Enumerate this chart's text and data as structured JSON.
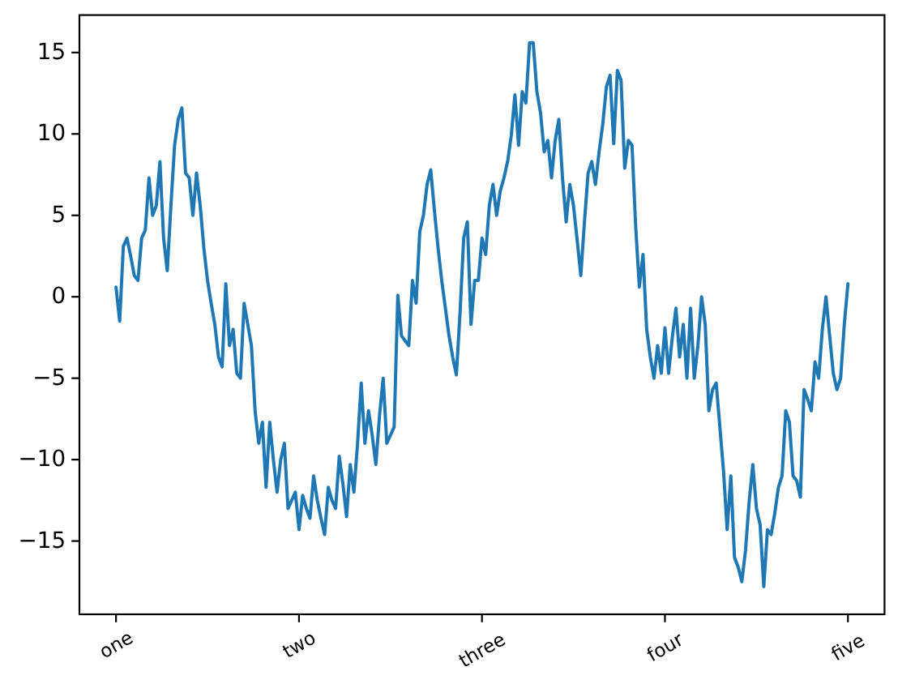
{
  "chart_data": {
    "type": "line",
    "categories": [
      "one",
      null,
      null,
      null,
      null,
      null,
      null,
      null,
      null,
      null,
      null,
      null,
      null,
      null,
      null,
      null,
      null,
      null,
      null,
      null,
      null,
      null,
      null,
      null,
      null,
      null,
      null,
      null,
      null,
      null,
      null,
      null,
      null,
      null,
      null,
      null,
      null,
      null,
      null,
      null,
      null,
      null,
      null,
      null,
      null,
      null,
      null,
      null,
      null,
      null,
      "two",
      null,
      null,
      null,
      null,
      null,
      null,
      null,
      null,
      null,
      null,
      null,
      null,
      null,
      null,
      null,
      null,
      null,
      null,
      null,
      null,
      null,
      null,
      null,
      null,
      null,
      null,
      null,
      null,
      null,
      null,
      null,
      null,
      null,
      null,
      null,
      null,
      null,
      null,
      null,
      null,
      null,
      null,
      null,
      null,
      null,
      null,
      null,
      null,
      null,
      "three",
      null,
      null,
      null,
      null,
      null,
      null,
      null,
      null,
      null,
      null,
      null,
      null,
      null,
      null,
      null,
      null,
      null,
      null,
      null,
      null,
      null,
      null,
      null,
      null,
      null,
      null,
      null,
      null,
      null,
      null,
      null,
      null,
      null,
      null,
      null,
      null,
      null,
      null,
      null,
      null,
      null,
      null,
      null,
      null,
      null,
      null,
      null,
      null,
      null,
      "four",
      null,
      null,
      null,
      null,
      null,
      null,
      null,
      null,
      null,
      null,
      null,
      null,
      null,
      null,
      null,
      null,
      null,
      null,
      null,
      null,
      null,
      null,
      null,
      null,
      null,
      null,
      null,
      null,
      null,
      null,
      null,
      null,
      null,
      null,
      null,
      null,
      null,
      null,
      null,
      null,
      null,
      null,
      null,
      null,
      null,
      null,
      null,
      null,
      null,
      "five"
    ],
    "series": [
      {
        "color": "#1f77b4",
        "values": [
          0.6,
          -1.5,
          3.1,
          3.6,
          2.5,
          1.3,
          1.0,
          3.6,
          4.1,
          7.3,
          5.0,
          5.6,
          8.3,
          3.6,
          1.6,
          5.6,
          9.3,
          10.9,
          11.6,
          7.6,
          7.3,
          5.0,
          7.6,
          5.6,
          3.0,
          1.0,
          -0.4,
          -1.7,
          -3.7,
          -4.3,
          0.8,
          -3.0,
          -2.0,
          -4.7,
          -5.0,
          -0.4,
          -1.7,
          -3.0,
          -7.0,
          -9.0,
          -7.7,
          -11.7,
          -7.7,
          -10.0,
          -12.0,
          -10.0,
          -9.0,
          -13.0,
          -12.5,
          -12.0,
          -14.3,
          -12.2,
          -13.0,
          -13.6,
          -11.0,
          -12.5,
          -13.6,
          -14.6,
          -11.7,
          -12.5,
          -13.0,
          -9.8,
          -11.5,
          -13.5,
          -10.3,
          -12.0,
          -9.0,
          -5.3,
          -9.0,
          -7.0,
          -8.5,
          -10.3,
          -7.3,
          -5.0,
          -9.0,
          -8.5,
          -8.0,
          0.1,
          -2.4,
          -2.7,
          -3.0,
          1.0,
          -0.4,
          4.0,
          5.0,
          6.9,
          7.8,
          5.3,
          3.0,
          1.0,
          -0.7,
          -2.4,
          -3.7,
          -4.8,
          -1.0,
          3.6,
          4.6,
          -1.7,
          1.0,
          1.0,
          3.6,
          2.6,
          5.6,
          6.9,
          5.0,
          6.5,
          7.3,
          8.3,
          9.9,
          12.4,
          9.3,
          12.6,
          11.9,
          15.6,
          15.6,
          12.6,
          11.3,
          8.9,
          9.6,
          7.3,
          9.6,
          10.9,
          7.3,
          4.6,
          6.9,
          5.6,
          3.5,
          1.3,
          4.6,
          7.6,
          8.3,
          6.9,
          8.9,
          10.6,
          12.9,
          13.6,
          9.4,
          13.9,
          13.3,
          7.9,
          9.6,
          9.3,
          4.3,
          0.6,
          2.6,
          -2.0,
          -3.7,
          -5.0,
          -3.0,
          -4.7,
          -1.9,
          -4.7,
          -2.5,
          -0.7,
          -3.7,
          -1.7,
          -5.0,
          -0.7,
          -5.0,
          -3.0,
          0.0,
          -1.7,
          -7.0,
          -5.7,
          -5.3,
          -8.0,
          -10.7,
          -14.3,
          -11.0,
          -16.0,
          -16.6,
          -17.5,
          -15.6,
          -12.6,
          -10.3,
          -13.0,
          -14.0,
          -17.8,
          -14.3,
          -14.6,
          -13.3,
          -11.7,
          -11.0,
          -7.0,
          -7.7,
          -11.0,
          -11.3,
          -12.3,
          -5.7,
          -6.3,
          -7.0,
          -4.0,
          -5.0,
          -2.0,
          0.0,
          -2.4,
          -4.7,
          -5.7,
          -5.0,
          -1.7,
          0.8
        ]
      }
    ],
    "ylim": [
      -19.5,
      17.3
    ],
    "yticks": [
      -15,
      -10,
      -5,
      0,
      5,
      10,
      15
    ]
  }
}
